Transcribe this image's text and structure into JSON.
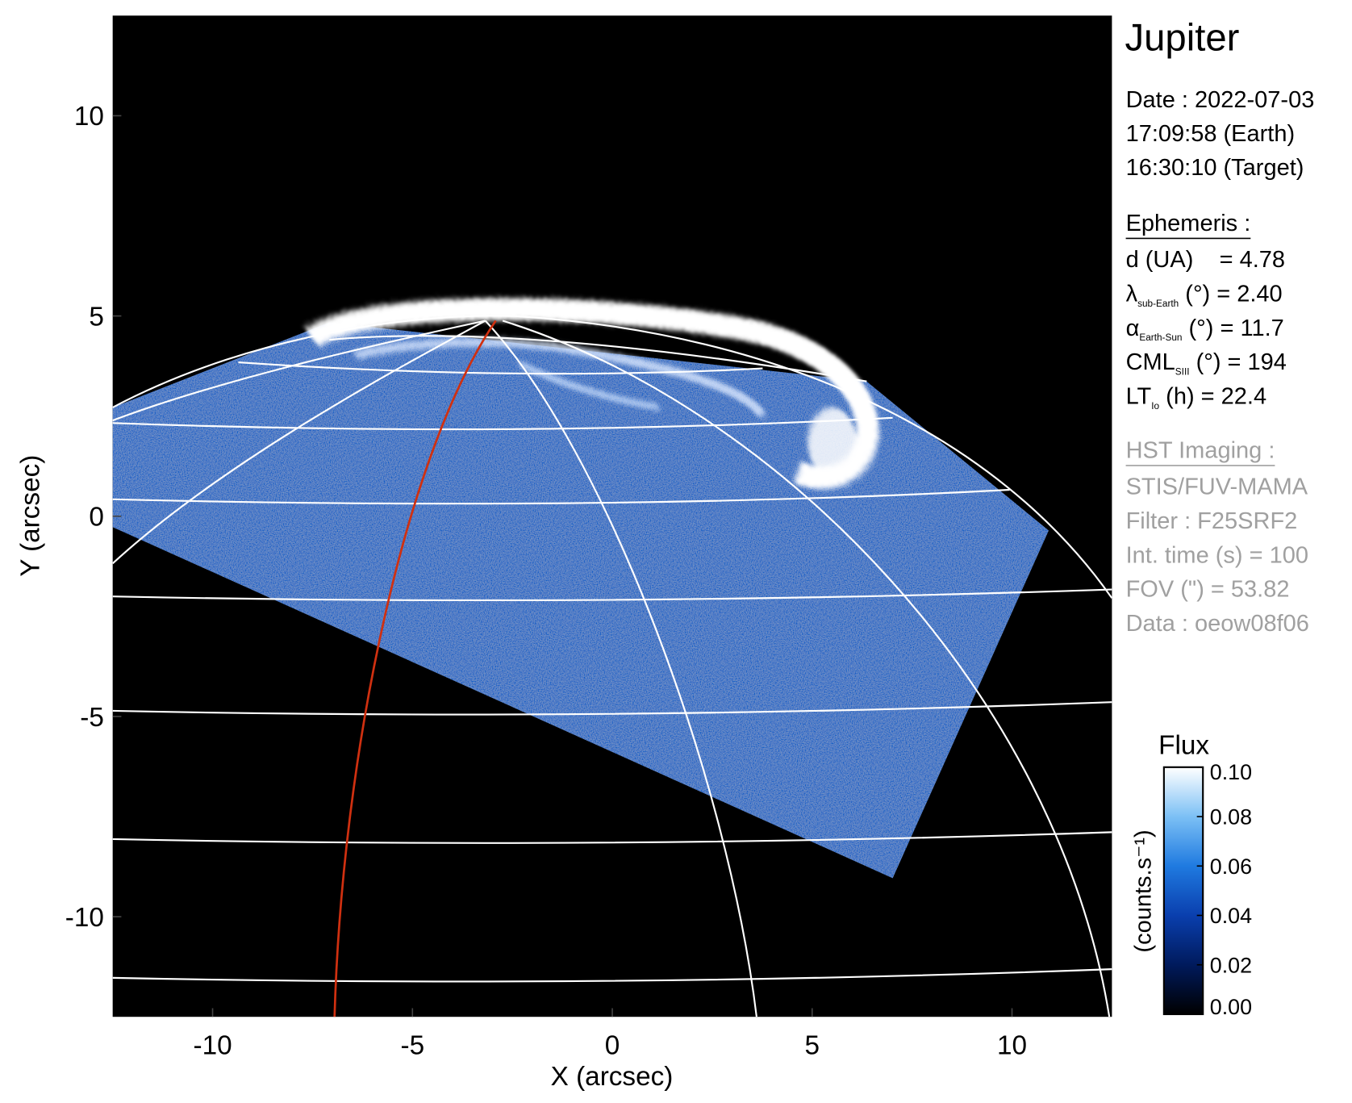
{
  "chart_data": {
    "type": "image",
    "title": "Jupiter",
    "xlabel": "X (arcsec)",
    "ylabel": "Y (arcsec)",
    "xlim": [
      -12.5,
      12.5
    ],
    "ylim": [
      -12.5,
      12.5
    ],
    "xticks": [
      -10,
      -5,
      0,
      5,
      10
    ],
    "yticks": [
      -10,
      -5,
      0,
      5,
      10
    ],
    "date_lines": [
      "Date : 2022-07-03",
      "17:09:58 (Earth)",
      "16:30:10 (Target)"
    ],
    "ephemeris_title": "Ephemeris :",
    "ephemeris": [
      {
        "text": "d (UA)    = 4.78"
      },
      {
        "symbol": "λ",
        "subscript": "sub-Earth",
        "text": " (°) = 2.40"
      },
      {
        "symbol": "α",
        "subscript": "Earth-Sun",
        "text": " (°) = 11.7"
      },
      {
        "symbol": "CML",
        "subscript": "SIII",
        "text": " (°) = 194"
      },
      {
        "symbol": "LT",
        "subscript": "Io",
        "text": " (h) = 22.4"
      }
    ],
    "instrument_title": "HST Imaging :",
    "instrument": [
      "STIS/FUV-MAMA",
      "Filter : F25SRF2",
      "Int. time (s) = 100",
      "FOV (\") = 53.82",
      "Data : oeow08f06"
    ],
    "colorbar": {
      "label": "Flux",
      "unit_label": "(counts.s⁻¹)",
      "lim": [
        0,
        0.1
      ],
      "ticks": [
        {
          "value": 0,
          "label": "0.00"
        },
        0.02,
        0.04,
        0.06,
        0.08,
        {
          "value": 0.1,
          "label": "0.10"
        }
      ],
      "colors": [
        "#000000",
        "#001a5c",
        "#0a3fae",
        "#1f7ae0",
        "#7cc0f5",
        "#ffffff"
      ]
    }
  }
}
